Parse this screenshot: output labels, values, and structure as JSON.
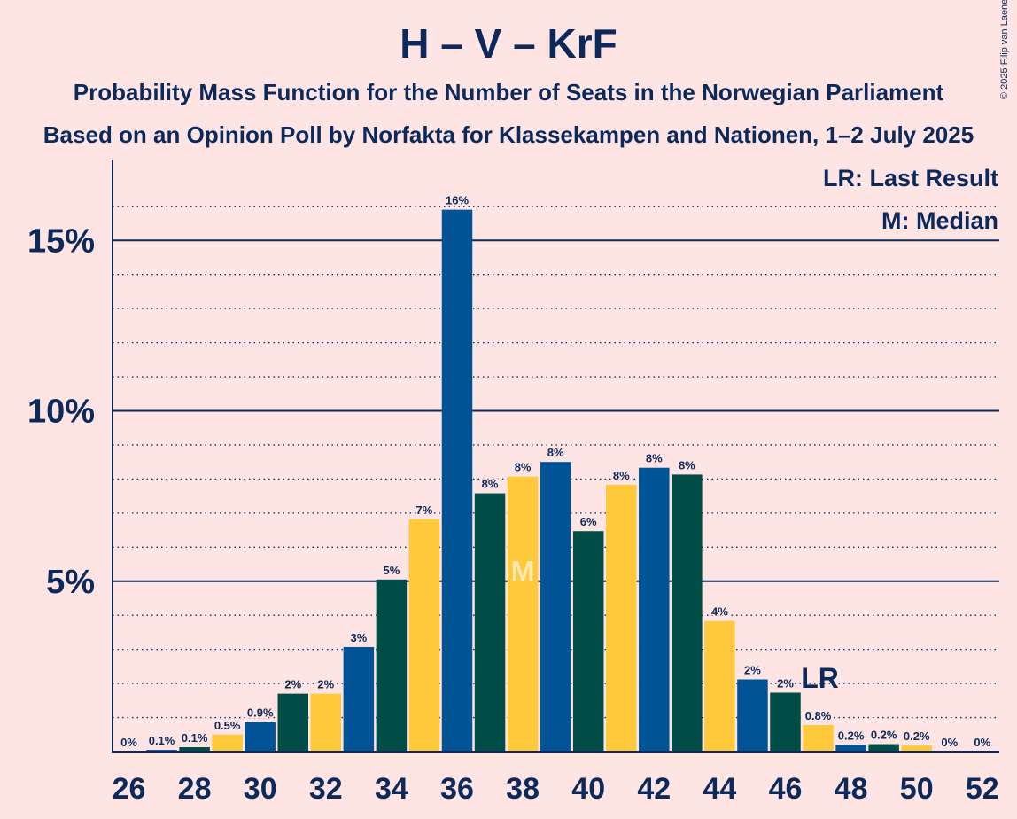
{
  "title": "H – V – KrF",
  "subtitle1": "Probability Mass Function for the Number of Seats in the Norwegian Parliament",
  "subtitle2": "Based on an Opinion Poll by Norfakta for Klassekampen and Nationen, 1–2 July 2025",
  "copyright": "© 2025 Filip van Laenen",
  "legend": {
    "last_result": "LR: Last Result",
    "median": "M: Median"
  },
  "colors": {
    "background": "#FFE4E4",
    "text": "#0B2A5B",
    "blue": "#005496",
    "green": "#004D47",
    "yellow": "#FFC93B",
    "gridline": "#0B2A5B"
  },
  "chart_data": {
    "type": "bar",
    "x_ticks": [
      "26",
      "28",
      "30",
      "32",
      "34",
      "36",
      "38",
      "40",
      "42",
      "44",
      "46",
      "48",
      "50",
      "52"
    ],
    "y_ticks": [
      "5%",
      "10%",
      "15%"
    ],
    "ylim": [
      0,
      17.2
    ],
    "seats": [
      26,
      27,
      28,
      29,
      30,
      31,
      32,
      33,
      34,
      35,
      36,
      37,
      38,
      39,
      40,
      41,
      42,
      43,
      44,
      45,
      46,
      47,
      48,
      49,
      50,
      51,
      52
    ],
    "values": [
      0,
      0.05,
      0.13,
      0.5,
      0.87,
      1.7,
      1.7,
      3.07,
      5.05,
      6.82,
      15.9,
      7.58,
      8.07,
      8.5,
      6.47,
      7.83,
      8.33,
      8.13,
      3.83,
      2.12,
      1.73,
      0.78,
      0.2,
      0.22,
      0.18,
      0,
      0
    ],
    "labels": [
      "0%",
      "0.1%",
      "0.1%",
      "0.5%",
      "0.9%",
      "2%",
      "2%",
      "3%",
      "5%",
      "7%",
      "16%",
      "8%",
      "8%",
      "8%",
      "6%",
      "8%",
      "8%",
      "8%",
      "4%",
      "2%",
      "2%",
      "0.8%",
      "0.2%",
      "0.2%",
      "0.2%",
      "0%",
      "0%"
    ],
    "colors": [
      "blue",
      "blue",
      "green",
      "yellow",
      "blue",
      "green",
      "yellow",
      "blue",
      "green",
      "yellow",
      "blue",
      "green",
      "yellow",
      "blue",
      "green",
      "yellow",
      "blue",
      "green",
      "yellow",
      "blue",
      "green",
      "yellow",
      "blue",
      "green",
      "yellow",
      "blue",
      "green"
    ],
    "median_seat": 38,
    "median_label": "M",
    "last_result_seat": 47,
    "last_result_label": "LR"
  }
}
